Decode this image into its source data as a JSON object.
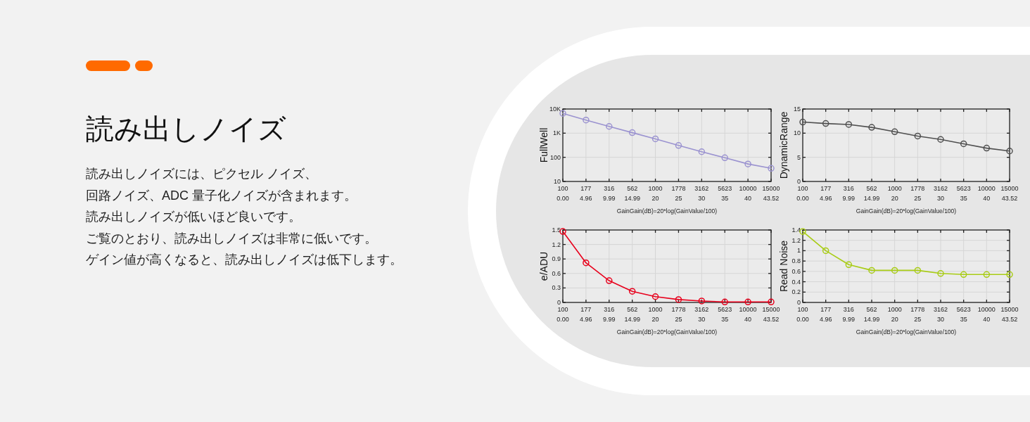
{
  "chart_data": [
    {
      "type": "other",
      "title": "読み出しノイズ",
      "annotations": [
        "読み出しノイズには、ピクセル ノイズ、",
        "回路ノイズ、ADC 量子化ノイズが含まれます。",
        "読み出しノイズが低いほど良いです。",
        "ご覧のとおり、読み出しノイズは非常に低いです。",
        "ゲイン値が高くなると、読み出しノイズは低下します。"
      ]
    },
    {
      "type": "line",
      "categories": [
        "100 0.00",
        "177 4.96",
        "316 9.99",
        "562 14.99",
        "1000 20",
        "1778 25",
        "3162 30",
        "5623 35",
        "10000 40",
        "15000 43.52"
      ],
      "values": [
        6600,
        3500,
        1900,
        1050,
        580,
        310,
        170,
        96,
        53,
        35
      ],
      "color": "#9b93d0",
      "log": true,
      "ylim": [
        10,
        10000
      ],
      "yticks": [
        10,
        100,
        {
          "value": 1000,
          "label": "1K"
        },
        {
          "value": 10000,
          "label": "10K"
        }
      ],
      "xlabel": "GainGain(dB)=20*log(GainValue/100)",
      "ylabel": "FullWell",
      "grid": true,
      "marker": "circle"
    },
    {
      "type": "line",
      "categories": [
        "100 0.00",
        "177 4.96",
        "316 9.99",
        "562 14.99",
        "1000 20",
        "1778 25",
        "3162 30",
        "5623 35",
        "10000 40",
        "15000 43.52"
      ],
      "values": [
        12.3,
        12.0,
        11.8,
        11.2,
        10.3,
        9.4,
        8.7,
        7.8,
        6.9,
        6.3
      ],
      "color": "#505050",
      "ylim": [
        0,
        15
      ],
      "yticks": [
        0,
        5,
        10,
        15
      ],
      "xlabel": "GainGain(dB)=20*log(GainValue/100)",
      "ylabel": "DynamicRange",
      "grid": true,
      "marker": "circle"
    },
    {
      "type": "line",
      "categories": [
        "100 0.00",
        "177 4.96",
        "316 9.99",
        "562 14.99",
        "1000 20",
        "1778 25",
        "3162 30",
        "5623 35",
        "10000 40",
        "15000 43.52"
      ],
      "values": [
        1.47,
        0.82,
        0.45,
        0.23,
        0.12,
        0.06,
        0.03,
        0.01,
        0.01,
        0.01
      ],
      "color": "#e8001c",
      "ylim": [
        0,
        1.5
      ],
      "yticks": [
        0,
        0.3,
        0.6,
        0.9,
        1.2,
        1.5
      ],
      "xlabel": "GainGain(dB)=20*log(GainValue/100)",
      "ylabel": "e/ADU",
      "grid": true,
      "marker": "circle"
    },
    {
      "type": "line",
      "categories": [
        "100 0.00",
        "177 4.96",
        "316 9.99",
        "562 14.99",
        "1000 20",
        "1778 25",
        "3162 30",
        "5623 35",
        "10000 40",
        "15000 43.52"
      ],
      "values": [
        1.37,
        1.0,
        0.73,
        0.62,
        0.62,
        0.62,
        0.56,
        0.54,
        0.54,
        0.54
      ],
      "color": "#a8cc14",
      "ylim": [
        0,
        1.4
      ],
      "yticks": [
        0,
        0.2,
        0.4,
        0.6,
        0.8,
        1,
        1.2,
        1.4
      ],
      "xlabel": "GainGain(dB)=20*log(GainValue/100)",
      "ylabel": "Read Noise",
      "grid": true,
      "marker": "circle"
    }
  ]
}
